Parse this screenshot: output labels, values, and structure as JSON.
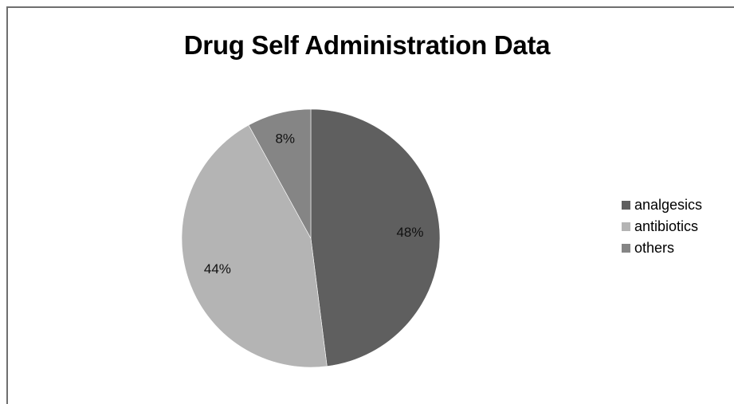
{
  "chart_data": {
    "type": "pie",
    "title": "Drug Self Administration Data",
    "categories": [
      "analgesics",
      "antibiotics",
      "others"
    ],
    "values": [
      48,
      44,
      8
    ],
    "value_labels": [
      "48%",
      "44%",
      "8%"
    ],
    "colors": [
      "#5f5f5f",
      "#b4b4b4",
      "#858585"
    ],
    "legend_position": "right",
    "start_angle": "top, clockwise"
  }
}
